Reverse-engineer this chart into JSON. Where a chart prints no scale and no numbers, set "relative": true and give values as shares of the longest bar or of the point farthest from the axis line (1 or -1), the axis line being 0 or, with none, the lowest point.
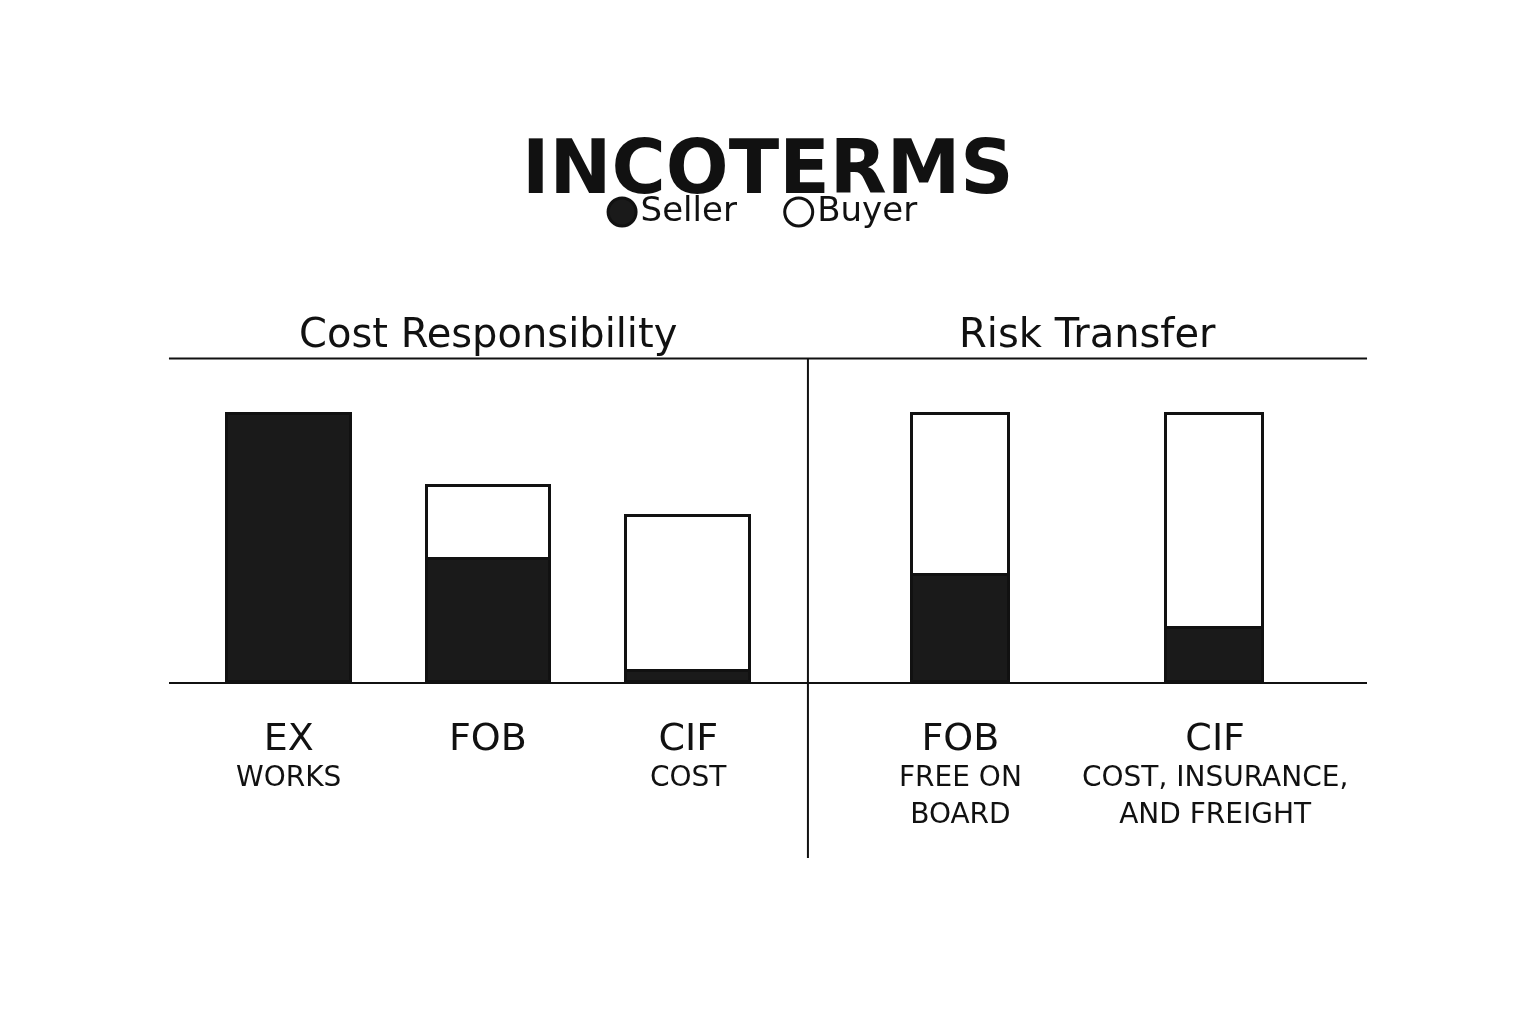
{
  "chart_data": [
    {
      "type": "bar",
      "title": "INCOTERMS",
      "subtitle": "Cost Responsibility",
      "categories": [
        "EX\nWORKS",
        "FOB",
        "CIF\nCOST"
      ],
      "stacked": true,
      "relative": true,
      "legend": "top",
      "series": [
        {
          "name": "Seller",
          "color": "#1a1a1a",
          "values": [
            1.0,
            0.46,
            0.04
          ]
        },
        {
          "name": "Buyer",
          "color": "#ffffff",
          "values": [
            null,
            0.27,
            0.58
          ]
        }
      ]
    },
    {
      "type": "bar",
      "subtitle": "Risk Transfer",
      "categories": [
        "FOB\nFREE ON\nBOARD",
        "CIF\nCOST, INSURANCE,\nAND FREIGHT"
      ],
      "stacked": true,
      "relative": true,
      "series": [
        {
          "color": "#1a1a1a",
          "values": [
            0.4,
            0.2
          ]
        },
        {
          "color": "#ffffff",
          "values": [
            0.6,
            0.8
          ]
        }
      ]
    }
  ]
}
